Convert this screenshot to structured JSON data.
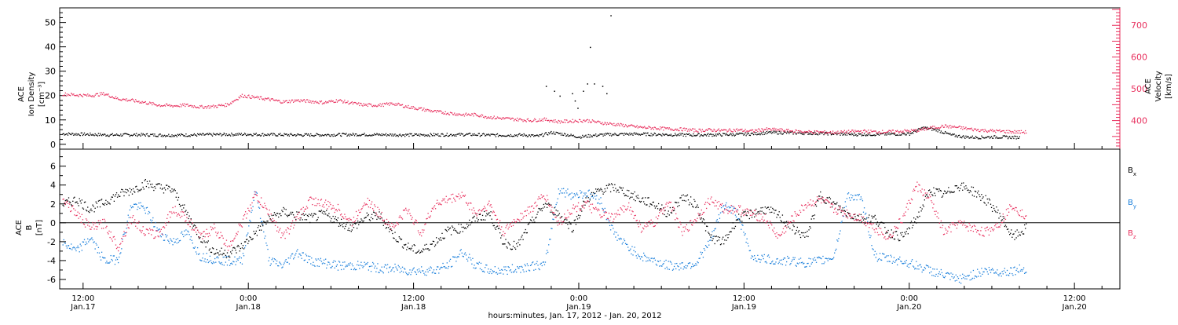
{
  "chart_data": [
    {
      "type": "scatter",
      "title": "",
      "xlabel": "hours:minutes, Jan. 17, 2012 - Jan. 20, 2012",
      "x_ticks": [
        {
          "time": "12:00",
          "date": "Jan.17",
          "hours": 12
        },
        {
          "time": "0:00",
          "date": "Jan.18",
          "hours": 24
        },
        {
          "time": "12:00",
          "date": "Jan.18",
          "hours": 36
        },
        {
          "time": "0:00",
          "date": "Jan.19",
          "hours": 48
        },
        {
          "time": "12:00",
          "date": "Jan.19",
          "hours": 60
        },
        {
          "time": "0:00",
          "date": "Jan.20",
          "hours": 72
        },
        {
          "time": "12:00",
          "date": "Jan.20",
          "hours": 84
        }
      ],
      "x_unit_note": "hours after 0:00 Jan.17 2012",
      "xlim": [
        10.3,
        87.3
      ],
      "ylabel_left": [
        "ACE",
        "Ion Density",
        "[cm⁻³]"
      ],
      "ylim_left": [
        -2,
        56
      ],
      "yticks_left": [
        0,
        10,
        20,
        30,
        40,
        50
      ],
      "ylabel_right": [
        "ACE",
        "Velocity",
        "[km/s]"
      ],
      "ylim_right": [
        310,
        755
      ],
      "yticks_right": [
        400,
        500,
        600,
        700
      ],
      "colors": {
        "density": "#000000",
        "velocity": "#e8305e"
      },
      "series": [
        {
          "name": "Density",
          "axis": "left",
          "color": "#000000",
          "x": [
            10.5,
            12,
            14,
            16,
            18,
            20,
            22,
            24,
            26,
            28,
            30,
            32,
            34,
            36,
            38,
            40,
            42,
            44,
            45,
            46,
            47,
            48,
            49,
            50,
            52,
            54,
            56,
            58,
            60,
            62,
            64,
            66,
            68,
            70,
            72,
            73,
            74,
            75,
            76,
            77,
            78,
            79,
            80
          ],
          "y": [
            4.5,
            4.3,
            4.0,
            4.1,
            3.9,
            4.0,
            4.2,
            4.3,
            4.1,
            4.0,
            4.1,
            4.2,
            4.1,
            4.0,
            4.1,
            4.2,
            3.9,
            4.0,
            3.5,
            5.0,
            4.2,
            3.2,
            3.8,
            4.2,
            4.4,
            4.2,
            4.0,
            4.1,
            4.3,
            5.0,
            4.8,
            4.6,
            4.2,
            4.3,
            4.5,
            7.0,
            6.0,
            4.0,
            3.2,
            3.0,
            3.2,
            3.1,
            3.0
          ]
        },
        {
          "name": "Density spikes",
          "axis": "left",
          "color": "#000000",
          "x": [
            45.6,
            46.2,
            46.6,
            47.5,
            47.7,
            47.9,
            48.3,
            48.6,
            48.8,
            49.1,
            49.7,
            50.0,
            50.3
          ],
          "y": [
            24,
            22,
            20,
            21,
            18,
            15,
            22,
            25,
            40,
            25,
            24,
            21,
            53
          ]
        },
        {
          "name": "Velocity",
          "axis": "right",
          "color": "#e8305e",
          "x": [
            10.5,
            11.5,
            12.5,
            13.5,
            14.5,
            15.5,
            16.5,
            17.5,
            18.5,
            19.5,
            20.5,
            21.5,
            22.5,
            23.5,
            24.5,
            25.5,
            26.5,
            27.5,
            28.5,
            29.5,
            30.5,
            31.5,
            32.5,
            33.5,
            34.5,
            35.5,
            36.5,
            37.5,
            38.5,
            39.5,
            40.5,
            41.5,
            42.5,
            43.5,
            44.5,
            45.5,
            46.5,
            47.5,
            48.5,
            49.5,
            50.5,
            51.5,
            52.5,
            53.5,
            54.5,
            55.5,
            56.5,
            57.5,
            58.5,
            59.5,
            60.5,
            61.5,
            62.5,
            63.5,
            64.5,
            65.5,
            66.5,
            67.5,
            68.5,
            69.5,
            70.5,
            71.5,
            72.5,
            73.5,
            74.5,
            75.5,
            76.5,
            77.5,
            78.5,
            79.5,
            80.5
          ],
          "y": [
            485,
            482,
            480,
            486,
            470,
            465,
            458,
            450,
            448,
            450,
            444,
            446,
            452,
            480,
            474,
            468,
            460,
            465,
            462,
            458,
            465,
            456,
            450,
            450,
            455,
            445,
            438,
            430,
            425,
            420,
            420,
            412,
            408,
            405,
            402,
            405,
            398,
            400,
            402,
            395,
            390,
            385,
            380,
            378,
            375,
            374,
            370,
            372,
            370,
            372,
            368,
            374,
            372,
            368,
            366,
            365,
            364,
            366,
            368,
            366,
            366,
            368,
            370,
            378,
            384,
            380,
            374,
            370,
            368,
            366,
            365
          ]
        }
      ]
    },
    {
      "type": "scatter",
      "title": "",
      "ylabel": [
        "ACE",
        "B",
        "[nT]"
      ],
      "xlim": [
        10.3,
        87.3
      ],
      "ylim": [
        -7,
        7.8
      ],
      "yticks": [
        -6,
        -4,
        -2,
        0,
        2,
        4,
        6
      ],
      "zero_line": true,
      "colors": {
        "Bx": "#000000",
        "By": "#1a7fdb",
        "Bz": "#e8305e"
      },
      "series": [
        {
          "name": "Bx",
          "color": "#000000",
          "x": [
            10.5,
            11.5,
            12.5,
            13.5,
            14.5,
            15.5,
            16.5,
            17.5,
            18.5,
            19.5,
            20.5,
            21.5,
            22.5,
            23.5,
            24.5,
            25.5,
            26.5,
            27.5,
            28.5,
            29.5,
            30.5,
            31.5,
            32.5,
            33.5,
            34.5,
            35.5,
            36.5,
            37.5,
            38.5,
            39.5,
            40.5,
            41.5,
            42.5,
            43.5,
            44.5,
            45.5,
            46.5,
            47.5,
            48.5,
            49.5,
            50.5,
            51.5,
            52.5,
            53.5,
            54.5,
            55.5,
            56.5,
            57.5,
            58.5,
            59.5,
            60.5,
            61.5,
            62.5,
            63.5,
            64.5,
            65.5,
            66.5,
            67.5,
            68.5,
            69.5,
            70.5,
            71.5,
            72.5,
            73.5,
            74.5,
            75.5,
            76.5,
            77.5,
            78.5,
            79.5,
            80.5
          ],
          "y": [
            2.0,
            2.5,
            1.5,
            2.2,
            3.0,
            3.5,
            4.2,
            3.8,
            3.5,
            1.0,
            -1.5,
            -3.0,
            -3.2,
            -2.5,
            -1.0,
            0.5,
            1.2,
            0.8,
            0.5,
            1.0,
            0.2,
            -0.5,
            0.6,
            0.8,
            -1.2,
            -2.5,
            -3.0,
            -2.0,
            -0.8,
            -0.5,
            0.5,
            1.0,
            -2.0,
            -2.5,
            0.0,
            2.0,
            1.0,
            -0.5,
            2.5,
            3.5,
            3.8,
            3.2,
            2.5,
            2.0,
            1.0,
            2.8,
            2.0,
            -1.5,
            -2.0,
            0.5,
            1.0,
            1.5,
            0.8,
            -0.5,
            -1.5,
            3.0,
            2.0,
            1.0,
            0.5,
            0.5,
            -1.0,
            -1.5,
            0.5,
            3.5,
            3.0,
            4.0,
            3.5,
            2.5,
            1.0,
            -1.5,
            -0.5
          ]
        },
        {
          "name": "By",
          "color": "#1a7fdb",
          "x": [
            10.5,
            11.5,
            12.5,
            13.5,
            14.5,
            15.5,
            16.5,
            17.5,
            18.5,
            19.5,
            20.5,
            21.5,
            22.5,
            23.5,
            24.5,
            25.5,
            26.5,
            27.5,
            28.5,
            29.5,
            30.5,
            31.5,
            32.5,
            33.5,
            34.5,
            35.5,
            36.5,
            37.5,
            38.5,
            39.5,
            40.5,
            41.5,
            42.5,
            43.5,
            44.5,
            45.5,
            46.5,
            47.5,
            48.5,
            49.5,
            50.5,
            51.5,
            52.5,
            53.5,
            54.5,
            55.5,
            56.5,
            57.5,
            58.5,
            59.5,
            60.5,
            61.5,
            62.5,
            63.5,
            64.5,
            65.5,
            66.5,
            67.5,
            68.5,
            69.5,
            70.5,
            71.5,
            72.5,
            73.5,
            74.5,
            75.5,
            76.5,
            77.5,
            78.5,
            79.5,
            80.5
          ],
          "y": [
            -2.0,
            -3.0,
            -1.5,
            -4.0,
            -3.8,
            2.0,
            1.5,
            -1.0,
            -2.0,
            -1.0,
            -3.5,
            -3.8,
            -4.0,
            -4.0,
            3.5,
            -4.0,
            -4.5,
            -3.0,
            -4.0,
            -4.2,
            -4.5,
            -4.5,
            -4.5,
            -4.8,
            -4.8,
            -5.0,
            -5.0,
            -5.0,
            -4.5,
            -3.0,
            -4.5,
            -5.0,
            -5.0,
            -4.8,
            -4.5,
            -4.5,
            3.5,
            3.0,
            3.2,
            2.5,
            -1.0,
            -2.5,
            -3.5,
            -4.0,
            -4.5,
            -4.5,
            -4.2,
            -2.0,
            2.0,
            1.0,
            -3.5,
            -3.8,
            -4.0,
            -4.0,
            -4.2,
            -4.0,
            -3.5,
            3.0,
            2.5,
            -3.5,
            -3.8,
            -4.0,
            -4.5,
            -5.0,
            -5.5,
            -6.0,
            -5.5,
            -5.0,
            -5.2,
            -5.0,
            -4.8
          ]
        },
        {
          "name": "Bz",
          "color": "#e8305e",
          "x": [
            10.5,
            11.5,
            12.5,
            13.5,
            14.5,
            15.5,
            16.5,
            17.5,
            18.5,
            19.5,
            20.5,
            21.5,
            22.5,
            23.5,
            24.5,
            25.5,
            26.5,
            27.5,
            28.5,
            29.5,
            30.5,
            31.5,
            32.5,
            33.5,
            34.5,
            35.5,
            36.5,
            37.5,
            38.5,
            39.5,
            40.5,
            41.5,
            42.5,
            43.5,
            44.5,
            45.5,
            46.5,
            47.5,
            48.5,
            49.5,
            50.5,
            51.5,
            52.5,
            53.5,
            54.5,
            55.5,
            56.5,
            57.5,
            58.5,
            59.5,
            60.5,
            61.5,
            62.5,
            63.5,
            64.5,
            65.5,
            66.5,
            67.5,
            68.5,
            69.5,
            70.5,
            71.5,
            72.5,
            73.5,
            74.5,
            75.5,
            76.5,
            77.5,
            78.5,
            79.5,
            80.5
          ],
          "y": [
            2.5,
            1.0,
            -0.5,
            0.0,
            -2.5,
            0.5,
            -1.0,
            -1.2,
            1.5,
            0.5,
            -1.5,
            -0.5,
            -2.5,
            0.0,
            3.0,
            1.0,
            -1.5,
            0.5,
            2.5,
            2.0,
            1.5,
            0.0,
            2.5,
            1.0,
            -0.5,
            1.5,
            -1.0,
            2.0,
            2.5,
            3.0,
            1.0,
            2.0,
            -1.0,
            0.5,
            1.5,
            3.0,
            0.0,
            1.5,
            2.0,
            1.0,
            0.5,
            2.0,
            -0.5,
            0.0,
            2.5,
            -1.0,
            0.5,
            2.5,
            1.5,
            1.5,
            1.0,
            0.5,
            -1.5,
            0.5,
            2.0,
            2.5,
            1.5,
            1.0,
            0.5,
            -0.5,
            -1.5,
            0.5,
            4.0,
            2.5,
            -1.0,
            0.0,
            -0.5,
            -1.0,
            0.0,
            2.0,
            0.5
          ]
        }
      ],
      "legend_labels": [
        {
          "base": "B",
          "sub": "x",
          "color": "#000000"
        },
        {
          "base": "B",
          "sub": "y",
          "color": "#1a7fdb"
        },
        {
          "base": "B",
          "sub": "z",
          "color": "#e8305e"
        }
      ]
    }
  ]
}
